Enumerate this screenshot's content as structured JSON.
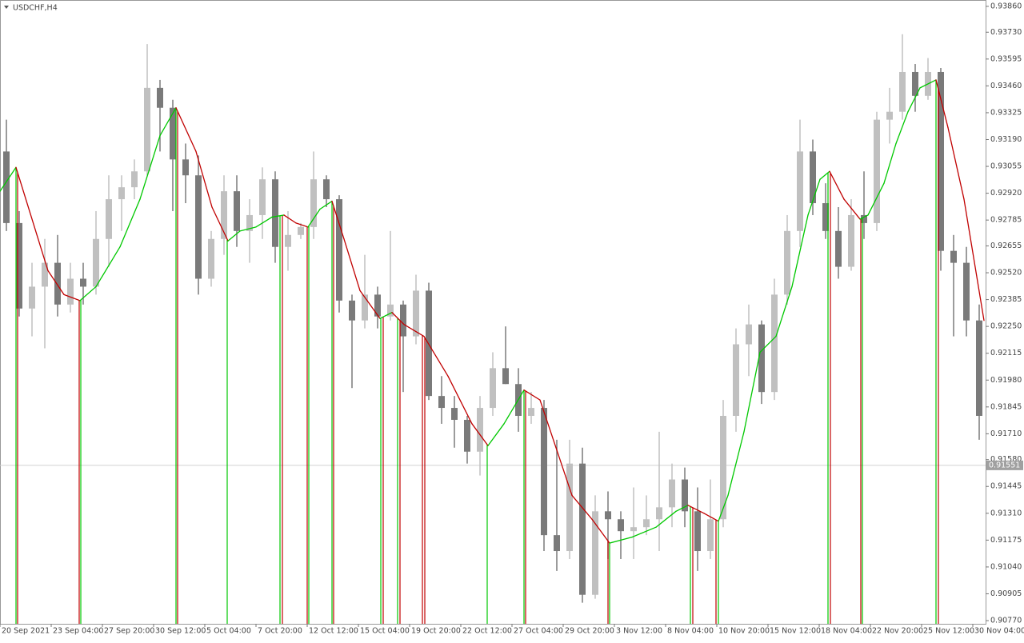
{
  "chart_data": {
    "type": "candlestick",
    "title": "USDCHF,H4",
    "xlim": [
      0,
      308
    ],
    "ylim": [
      0.90754,
      0.93892
    ],
    "yticks": [
      {
        "value": 0.9386,
        "label": "0.93860"
      },
      {
        "value": 0.9373,
        "label": "0.93730"
      },
      {
        "value": 0.93595,
        "label": "0.93595"
      },
      {
        "value": 0.9346,
        "label": "0.93460"
      },
      {
        "value": 0.93325,
        "label": "0.93325"
      },
      {
        "value": 0.9319,
        "label": "0.93190"
      },
      {
        "value": 0.93055,
        "label": "0.93055"
      },
      {
        "value": 0.9292,
        "label": "0.92920"
      },
      {
        "value": 0.92785,
        "label": "0.92785"
      },
      {
        "value": 0.92655,
        "label": "0.92655"
      },
      {
        "value": 0.9252,
        "label": "0.92520"
      },
      {
        "value": 0.92385,
        "label": "0.92385"
      },
      {
        "value": 0.9225,
        "label": "0.92250"
      },
      {
        "value": 0.92115,
        "label": "0.92115"
      },
      {
        "value": 0.9198,
        "label": "0.91980"
      },
      {
        "value": 0.91845,
        "label": "0.91845"
      },
      {
        "value": 0.9171,
        "label": "0.91710"
      },
      {
        "value": 0.9158,
        "label": "0.91580"
      },
      {
        "value": 0.91445,
        "label": "0.91445"
      },
      {
        "value": 0.9131,
        "label": "0.91310"
      },
      {
        "value": 0.91175,
        "label": "0.91175"
      },
      {
        "value": 0.9104,
        "label": "0.91040"
      },
      {
        "value": 0.90905,
        "label": "0.90905"
      },
      {
        "value": 0.9077,
        "label": "0.90770"
      }
    ],
    "xticks": [
      {
        "value": 0,
        "label": "20 Sep 2021"
      },
      {
        "value": 16,
        "label": "23 Sep 04:00"
      },
      {
        "value": 32,
        "label": "27 Sep 20:00"
      },
      {
        "value": 48,
        "label": "30 Sep 12:00"
      },
      {
        "value": 64,
        "label": "5 Oct 04:00"
      },
      {
        "value": 80,
        "label": "7 Oct 20:00"
      },
      {
        "value": 96,
        "label": "12 Oct 12:00"
      },
      {
        "value": 112,
        "label": "15 Oct 04:00"
      },
      {
        "value": 128,
        "label": "19 Oct 20:00"
      },
      {
        "value": 144,
        "label": "22 Oct 12:00"
      },
      {
        "value": 160,
        "label": "27 Oct 04:00"
      },
      {
        "value": 176,
        "label": "29 Oct 20:00"
      },
      {
        "value": 192,
        "label": "3 Nov 12:00"
      },
      {
        "value": 208,
        "label": "8 Nov 04:00"
      },
      {
        "value": 224,
        "label": "10 Nov 20:00"
      },
      {
        "value": 240,
        "label": "15 Nov 12:00"
      },
      {
        "value": 256,
        "label": "18 Nov 04:00"
      },
      {
        "value": 272,
        "label": "22 Nov 20:00"
      },
      {
        "value": 288,
        "label": "25 Nov 12:00"
      },
      {
        "value": 304,
        "label": "30 Nov 04:00"
      }
    ],
    "up_color": "#c0c0c0",
    "down_color": "#7a7a7a",
    "open": [
      0.9313,
      0.9277,
      0.9234,
      0.9245,
      0.9257,
      0.9236,
      0.9249,
      0.9245,
      0.9269,
      0.9289,
      0.9295,
      0.9303,
      0.9345,
      0.9335,
      0.9309,
      0.9301,
      0.9249,
      0.9269,
      0.9293,
      0.9273,
      0.9281,
      0.9299,
      0.9265,
      0.9271,
      0.9275,
      0.9299,
      0.9289,
      0.9238,
      0.9228,
      0.9241,
      0.923,
      0.9236,
      0.922,
      0.9243,
      0.919,
      0.9184,
      0.9178,
      0.9162,
      0.9184,
      0.9204,
      0.9196,
      0.918,
      0.9184,
      0.912,
      0.9112,
      0.9156,
      0.909,
      0.9132,
      0.9128,
      0.9122,
      0.9124,
      0.9128,
      0.9134,
      0.9148,
      0.9132,
      0.9112,
      0.9128,
      0.918,
      0.9216,
      0.9226,
      0.9192,
      0.9241,
      0.9273,
      0.9313,
      0.9287,
      0.9273,
      0.9255,
      0.9281,
      0.9277,
      0.9329,
      0.9333,
      0.9353,
      0.9341,
      0.9353,
      0.9263,
      0.9257,
      0.9228
    ],
    "high": [
      0.9329,
      0.9283,
      0.9257,
      0.9269,
      0.9271,
      0.9257,
      0.9257,
      0.9283,
      0.9301,
      0.9301,
      0.9309,
      0.9367,
      0.9349,
      0.9339,
      0.9317,
      0.9311,
      0.9273,
      0.9301,
      0.9301,
      0.9289,
      0.9305,
      0.9303,
      0.9283,
      0.9277,
      0.9313,
      0.9301,
      0.9291,
      0.9241,
      0.9261,
      0.9245,
      0.9273,
      0.9238,
      0.9251,
      0.9247,
      0.92,
      0.919,
      0.918,
      0.919,
      0.9212,
      0.9225,
      0.9204,
      0.9192,
      0.9188,
      0.9168,
      0.9168,
      0.9164,
      0.914,
      0.9142,
      0.9132,
      0.9144,
      0.914,
      0.9172,
      0.9156,
      0.9154,
      0.9144,
      0.9148,
      0.9188,
      0.9224,
      0.9236,
      0.9228,
      0.9249,
      0.9281,
      0.9329,
      0.9319,
      0.9297,
      0.9285,
      0.9289,
      0.9303,
      0.9333,
      0.9345,
      0.9372,
      0.9357,
      0.936,
      0.9355,
      0.9271,
      0.9265,
      0.9236
    ],
    "low": [
      0.9273,
      0.923,
      0.922,
      0.9214,
      0.923,
      0.9232,
      0.9236,
      0.9241,
      0.9255,
      0.9273,
      0.9289,
      0.9301,
      0.9313,
      0.9283,
      0.9287,
      0.9241,
      0.9245,
      0.9261,
      0.9265,
      0.9257,
      0.9269,
      0.9257,
      0.9253,
      0.9269,
      0.9269,
      0.9285,
      0.9232,
      0.9194,
      0.9224,
      0.9224,
      0.9228,
      0.9192,
      0.9216,
      0.9188,
      0.9176,
      0.9164,
      0.9156,
      0.915,
      0.918,
      0.9196,
      0.9172,
      0.9176,
      0.9112,
      0.9102,
      0.9108,
      0.9086,
      0.9088,
      0.9108,
      0.9108,
      0.9108,
      0.912,
      0.9112,
      0.9124,
      0.9124,
      0.9102,
      0.9108,
      0.9124,
      0.9172,
      0.92,
      0.9186,
      0.9188,
      0.9236,
      0.9265,
      0.9281,
      0.9269,
      0.9249,
      0.9253,
      0.9269,
      0.9273,
      0.9317,
      0.9329,
      0.9333,
      0.9339,
      0.9253,
      0.922,
      0.922,
      0.9168
    ],
    "close": [
      0.9277,
      0.9234,
      0.9245,
      0.9257,
      0.9236,
      0.9249,
      0.9245,
      0.9269,
      0.9289,
      0.9295,
      0.9303,
      0.9345,
      0.9335,
      0.9309,
      0.9301,
      0.9249,
      0.9269,
      0.9293,
      0.9273,
      0.9281,
      0.9299,
      0.9265,
      0.9271,
      0.9275,
      0.9299,
      0.9289,
      0.9238,
      0.9228,
      0.9241,
      0.923,
      0.9236,
      0.922,
      0.9243,
      0.919,
      0.9184,
      0.9178,
      0.9162,
      0.9184,
      0.9204,
      0.9196,
      0.918,
      0.9184,
      0.912,
      0.9112,
      0.9156,
      0.909,
      0.9132,
      0.9128,
      0.9122,
      0.9124,
      0.9128,
      0.9134,
      0.9148,
      0.9132,
      0.9112,
      0.9128,
      0.918,
      0.9216,
      0.9226,
      0.9192,
      0.9241,
      0.9273,
      0.9313,
      0.9287,
      0.9273,
      0.9255,
      0.9281,
      0.9277,
      0.9329,
      0.9333,
      0.9353,
      0.9341,
      0.9353,
      0.9263,
      0.9257,
      0.9228,
      0.918
    ],
    "indicator": {
      "rise_color": "#00c800",
      "fall_color": "#c00000",
      "x": [
        0,
        5,
        15,
        20,
        25,
        30,
        37.5,
        43.75,
        50,
        55,
        61.25,
        66.25,
        71.25,
        75,
        80,
        85,
        88.75,
        92.5,
        96.25,
        100,
        103.75,
        107.5,
        112.5,
        118.75,
        122.5,
        126.25,
        132.5,
        140,
        147.5,
        152.5,
        157.5,
        163.75,
        168.75,
        173.75,
        178.75,
        185,
        190.5,
        197.5,
        205,
        211.25,
        215,
        220,
        224.5,
        227.5,
        232.5,
        237.5,
        242.5,
        247.5,
        252.5,
        256.25,
        259.25,
        263.75,
        268.75,
        271.25,
        276.25,
        280,
        283.75,
        287.5,
        292.5,
        296.25,
        301.25,
        307.5
      ],
      "values": [
        0.9293,
        0.9305,
        0.9253,
        0.9241,
        0.9238,
        0.9245,
        0.9265,
        0.9289,
        0.9321,
        0.9335,
        0.9313,
        0.9285,
        0.9268,
        0.9273,
        0.9275,
        0.928,
        0.9281,
        0.9277,
        0.9275,
        0.9284,
        0.9288,
        0.9269,
        0.9243,
        0.9229,
        0.9232,
        0.9226,
        0.922,
        0.92,
        0.9176,
        0.9165,
        0.9176,
        0.9193,
        0.9188,
        0.9164,
        0.914,
        0.9128,
        0.9116,
        0.9119,
        0.9124,
        0.9132,
        0.9135,
        0.9131,
        0.9127,
        0.914,
        0.9172,
        0.9212,
        0.922,
        0.9245,
        0.9281,
        0.9299,
        0.9303,
        0.9289,
        0.9279,
        0.9281,
        0.9297,
        0.9317,
        0.9333,
        0.9345,
        0.9349,
        0.9325,
        0.9289,
        0.9228
      ]
    },
    "signals": {
      "x": [
        5,
        5.5,
        24.75,
        25.25,
        55,
        55.5,
        71,
        87.5,
        88.25,
        96,
        96.5,
        103.75,
        104.25,
        119,
        119.75,
        124.25,
        125,
        132,
        132.75,
        152.25,
        163.75,
        164.25,
        190,
        190.5,
        215.75,
        216.5,
        223.75,
        224.5,
        258.75,
        259.5,
        269,
        269.5,
        292.5,
        293.25
      ],
      "colors": [
        "#00c800",
        "#c00000",
        "#c00000",
        "#00c800",
        "#00c800",
        "#c00000",
        "#00c800",
        "#00c800",
        "#c00000",
        "#c00000",
        "#00c800",
        "#00c800",
        "#c00000",
        "#00c800",
        "#c00000",
        "#00c800",
        "#c00000",
        "#c00000",
        "#c00000",
        "#00c800",
        "#00c800",
        "#c00000",
        "#c00000",
        "#00c800",
        "#00c800",
        "#c00000",
        "#c00000",
        "#00c800",
        "#00c800",
        "#c00000",
        "#c00000",
        "#00c800",
        "#00c800",
        "#c00000"
      ]
    },
    "current_price": 0.91551,
    "current_color": "#a0a0a0"
  }
}
